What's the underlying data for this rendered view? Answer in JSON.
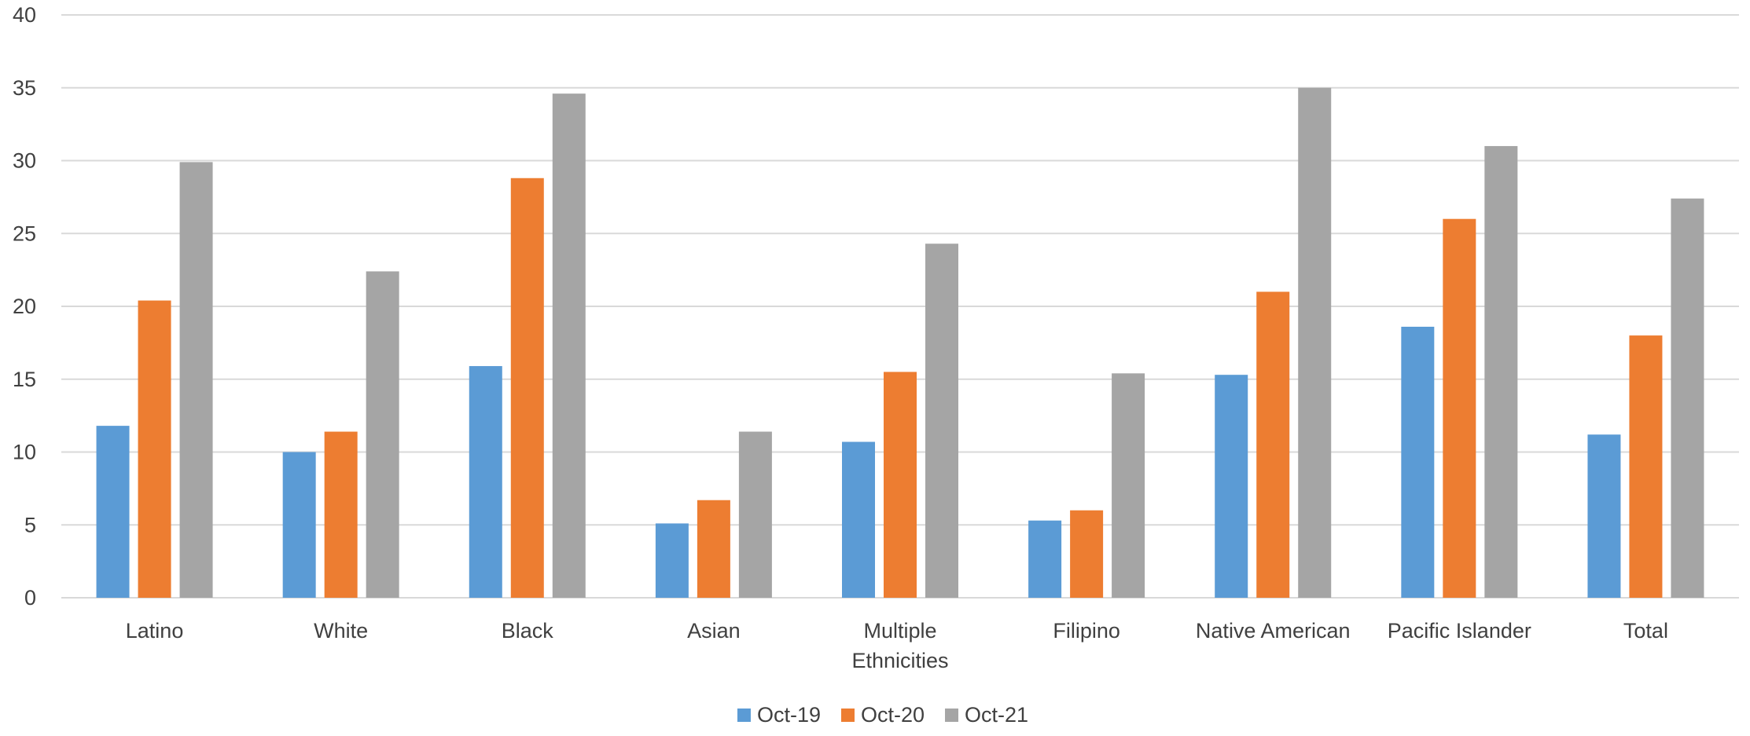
{
  "chart_data": {
    "type": "bar",
    "title": "",
    "xlabel": "",
    "ylabel": "",
    "ylim": [
      0,
      40
    ],
    "yticks": [
      0,
      5,
      10,
      15,
      20,
      25,
      30,
      35,
      40
    ],
    "grid": true,
    "legend_position": "bottom",
    "categories": [
      [
        "Latino"
      ],
      [
        "White"
      ],
      [
        "Black"
      ],
      [
        "Asian"
      ],
      [
        "Multiple",
        "Ethnicities"
      ],
      [
        "Filipino"
      ],
      [
        "Native American"
      ],
      [
        "Pacific Islander"
      ],
      [
        "Total"
      ]
    ],
    "series": [
      {
        "name": "Oct-19",
        "color": "#5b9bd5",
        "values": [
          11.8,
          10.0,
          15.9,
          5.1,
          10.7,
          5.3,
          15.3,
          18.6,
          11.2
        ]
      },
      {
        "name": "Oct-20",
        "color": "#ed7d31",
        "values": [
          20.4,
          11.4,
          28.8,
          6.7,
          15.5,
          6.0,
          21.0,
          26.0,
          18.0
        ]
      },
      {
        "name": "Oct-21",
        "color": "#a5a5a5",
        "values": [
          29.9,
          22.4,
          34.6,
          11.4,
          24.3,
          15.4,
          35.0,
          31.0,
          27.4
        ]
      }
    ]
  }
}
